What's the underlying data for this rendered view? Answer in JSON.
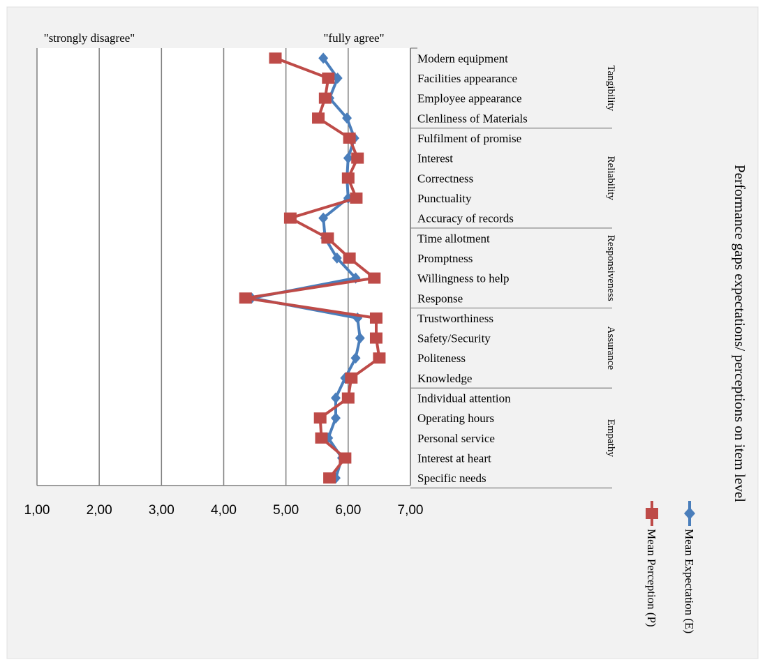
{
  "chart_data": {
    "type": "line",
    "title": "Performance gaps expectations/ perceptions on item level",
    "scale_labels": {
      "low": "\"strongly disagree\"",
      "high": "\"fully agree\""
    },
    "xlim": [
      1,
      7
    ],
    "x_ticks": [
      "1,00",
      "2,00",
      "3,00",
      "4,00",
      "5,00",
      "6,00",
      "7,00"
    ],
    "grid": true,
    "legend_position": "right",
    "groups": [
      {
        "name": "Tangibility",
        "items": [
          "Modern equipment",
          "Facilities appearance",
          "Employee appearance",
          "Clenliness of Materials"
        ]
      },
      {
        "name": "Reliability",
        "items": [
          "Fulfilment of promise",
          "Interest",
          "Correctness",
          "Punctuality",
          "Accuracy of records"
        ]
      },
      {
        "name": "Responsiveness",
        "items": [
          "Time allotment",
          "Promptness",
          "Willingness to help",
          "Response"
        ]
      },
      {
        "name": "Assurance",
        "items": [
          "Trustworthiness",
          "Safety/Security",
          "Politeness",
          "Knowledge"
        ]
      },
      {
        "name": "Empathy",
        "items": [
          "Individual attention",
          "Operating hours",
          "Personal service",
          "Interest at heart",
          "Specific needs"
        ]
      }
    ],
    "categories": [
      "Modern equipment",
      "Facilities appearance",
      "Employee appearance",
      "Clenliness of Materials",
      "Fulfilment of promise",
      "Interest",
      "Correctness",
      "Punctuality",
      "Accuracy of records",
      "Time allotment",
      "Promptness",
      "Willingness to help",
      "Response",
      "Trustworthiness",
      "Safety/Security",
      "Politeness",
      "Knowledge",
      "Individual attention",
      "Operating hours",
      "Personal service",
      "Interest at heart",
      "Specific needs"
    ],
    "series": [
      {
        "name": "Mean Expectation (E)",
        "color": "#4a7ebb",
        "marker": "diamond",
        "values": [
          5.6,
          5.83,
          5.7,
          5.98,
          6.1,
          6.0,
          5.98,
          6.0,
          5.6,
          5.63,
          5.82,
          6.12,
          4.45,
          6.15,
          6.19,
          6.12,
          5.95,
          5.8,
          5.8,
          5.68,
          5.9,
          5.8
        ]
      },
      {
        "name": "Mean Perception (P)",
        "color": "#be4b48",
        "marker": "square",
        "values": [
          4.83,
          5.68,
          5.63,
          5.52,
          6.02,
          6.15,
          6.0,
          6.13,
          5.07,
          5.67,
          6.02,
          6.42,
          4.35,
          6.45,
          6.45,
          6.5,
          6.05,
          6.0,
          5.55,
          5.57,
          5.95,
          5.7
        ]
      }
    ]
  }
}
